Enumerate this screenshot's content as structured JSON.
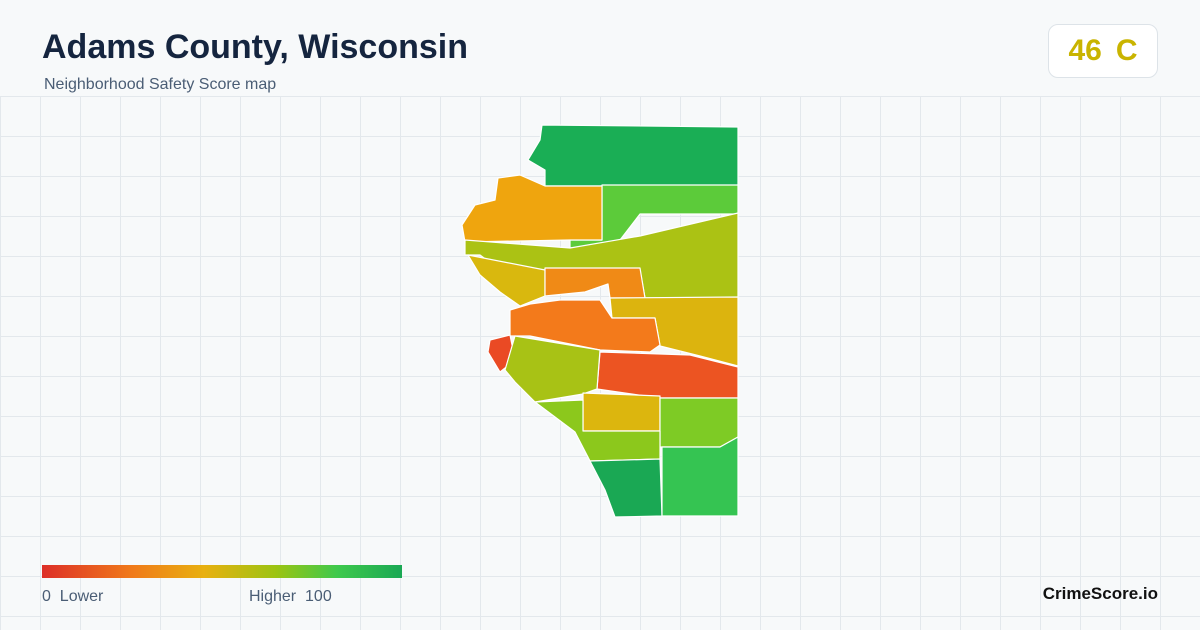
{
  "header": {
    "title": "Adams County, Wisconsin",
    "subtitle": "Neighborhood Safety Score map"
  },
  "score": {
    "value": 46,
    "grade": "C"
  },
  "legend": {
    "min": 0,
    "min_label": "Lower",
    "max_label": "Higher",
    "max": 100
  },
  "brand": "CrimeScore.io"
}
